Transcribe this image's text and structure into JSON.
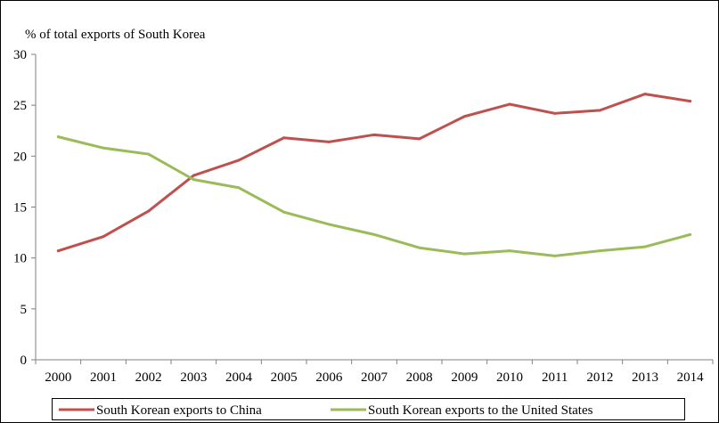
{
  "chart_data": {
    "type": "line",
    "title": "% of total exports of South Korea",
    "xlabel": "",
    "ylabel": "",
    "x": [
      "2000",
      "2001",
      "2002",
      "2003",
      "2004",
      "2005",
      "2006",
      "2007",
      "2008",
      "2009",
      "2010",
      "2011",
      "2012",
      "2013",
      "2014"
    ],
    "ylim": [
      0,
      30
    ],
    "yticks": [
      "0",
      "5",
      "10",
      "15",
      "20",
      "25",
      "30"
    ],
    "grid": false,
    "legend_position": "bottom",
    "series": [
      {
        "name": "South Korean exports to China",
        "color": "#C0504D",
        "values": [
          10.7,
          12.1,
          14.6,
          18.1,
          19.6,
          21.8,
          21.4,
          22.1,
          21.7,
          23.9,
          25.1,
          24.2,
          24.5,
          26.1,
          25.4
        ]
      },
      {
        "name": "South Korean exports to the United States",
        "color": "#9BBB59",
        "values": [
          21.9,
          20.8,
          20.2,
          17.7,
          16.9,
          14.5,
          13.3,
          12.3,
          11.0,
          10.4,
          10.7,
          10.2,
          10.7,
          11.1,
          12.3
        ]
      }
    ]
  }
}
